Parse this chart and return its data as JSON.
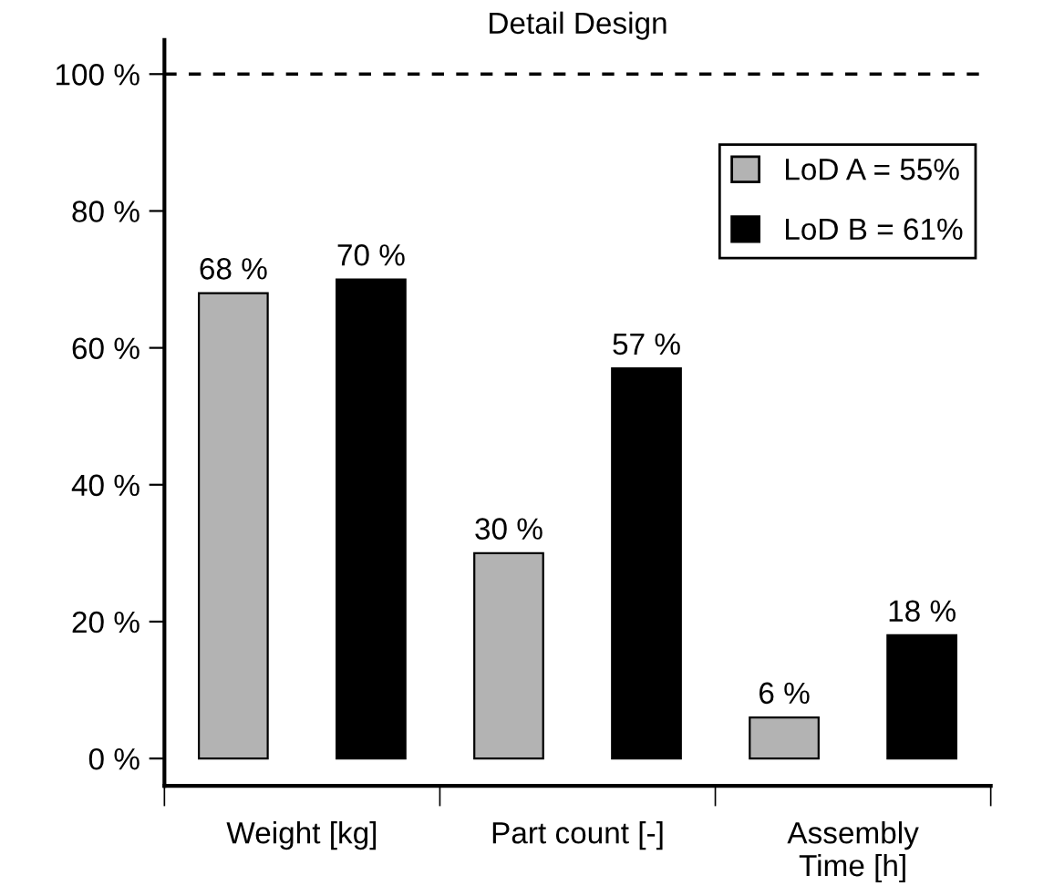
{
  "chart_data": {
    "type": "bar",
    "title": "Detail Design",
    "categories": [
      "Weight [kg]",
      "Part count [-]",
      "Assembly\nTime [h]"
    ],
    "series": [
      {
        "name": "LoD A = 55%",
        "color": "#b3b3b3",
        "values": [
          68,
          30,
          6
        ],
        "value_labels": [
          "68 %",
          "30 %",
          "6 %"
        ]
      },
      {
        "name": "LoD B = 61%",
        "color": "#000000",
        "values": [
          70,
          57,
          18
        ],
        "value_labels": [
          "70 %",
          "57 %",
          "18 %"
        ]
      }
    ],
    "ylim": [
      -4,
      105
    ],
    "yticks": [
      {
        "value": 0,
        "label": "0 %"
      },
      {
        "value": 20,
        "label": "20 %"
      },
      {
        "value": 40,
        "label": "40 %"
      },
      {
        "value": 60,
        "label": "60 %"
      },
      {
        "value": 80,
        "label": "80 %"
      },
      {
        "value": 100,
        "label": "100 %"
      }
    ],
    "ref_lines": [
      {
        "axis": "y",
        "value": 100,
        "color": "#000000",
        "line_style": "dashed"
      }
    ],
    "grid": false,
    "legend": "top right"
  }
}
